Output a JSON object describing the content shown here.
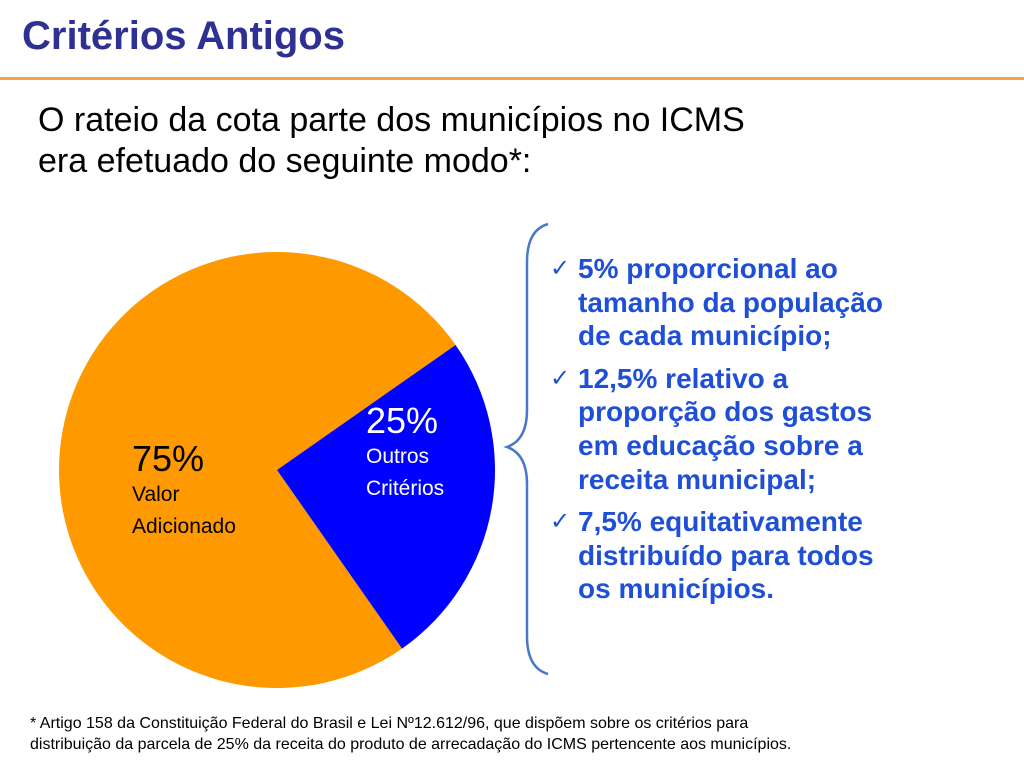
{
  "slide": {
    "title": "Critérios Antigos",
    "subtitle_lines": [
      "O rateio da cota parte dos municípios no ICMS",
      "era efetuado do seguinte modo*:"
    ],
    "bullets": [
      {
        "icon": "checkmark-icon",
        "lines": [
          "5% proporcional ao",
          "tamanho da população",
          "de cada município;"
        ]
      },
      {
        "icon": "checkmark-icon",
        "lines": [
          "12,5% relativo a",
          "proporção dos gastos",
          "em educação sobre a",
          "receita municipal;"
        ]
      },
      {
        "icon": "checkmark-icon",
        "lines": [
          "7,5% equitativamente",
          "distribuído para todos",
          "os municípios."
        ]
      }
    ],
    "footnote_lines": [
      "* Artigo 158 da Constituição Federal do Brasil e Lei Nº12.612/96, que dispõem sobre os critérios para",
      "distribuição da parcela de 25% da receita do produto de arrecadação do ICMS pertencente aos municípios."
    ],
    "colors": {
      "title": "#2E3192",
      "rule": "#F7A24A",
      "bullets": "#1F4FD6",
      "brace": "#4A78C8"
    }
  },
  "chart_data": {
    "type": "pie",
    "slices": [
      {
        "pct_label": "75%",
        "name_lines": [
          "Valor",
          "Adicionado"
        ],
        "value": 75,
        "color": "#FF9900"
      },
      {
        "pct_label": "25%",
        "name_lines": [
          "Outros",
          "Critérios"
        ],
        "value": 25,
        "color": "#0000FF"
      }
    ],
    "start_angle_deg": 35,
    "direction": "clockwise-from-orange"
  }
}
